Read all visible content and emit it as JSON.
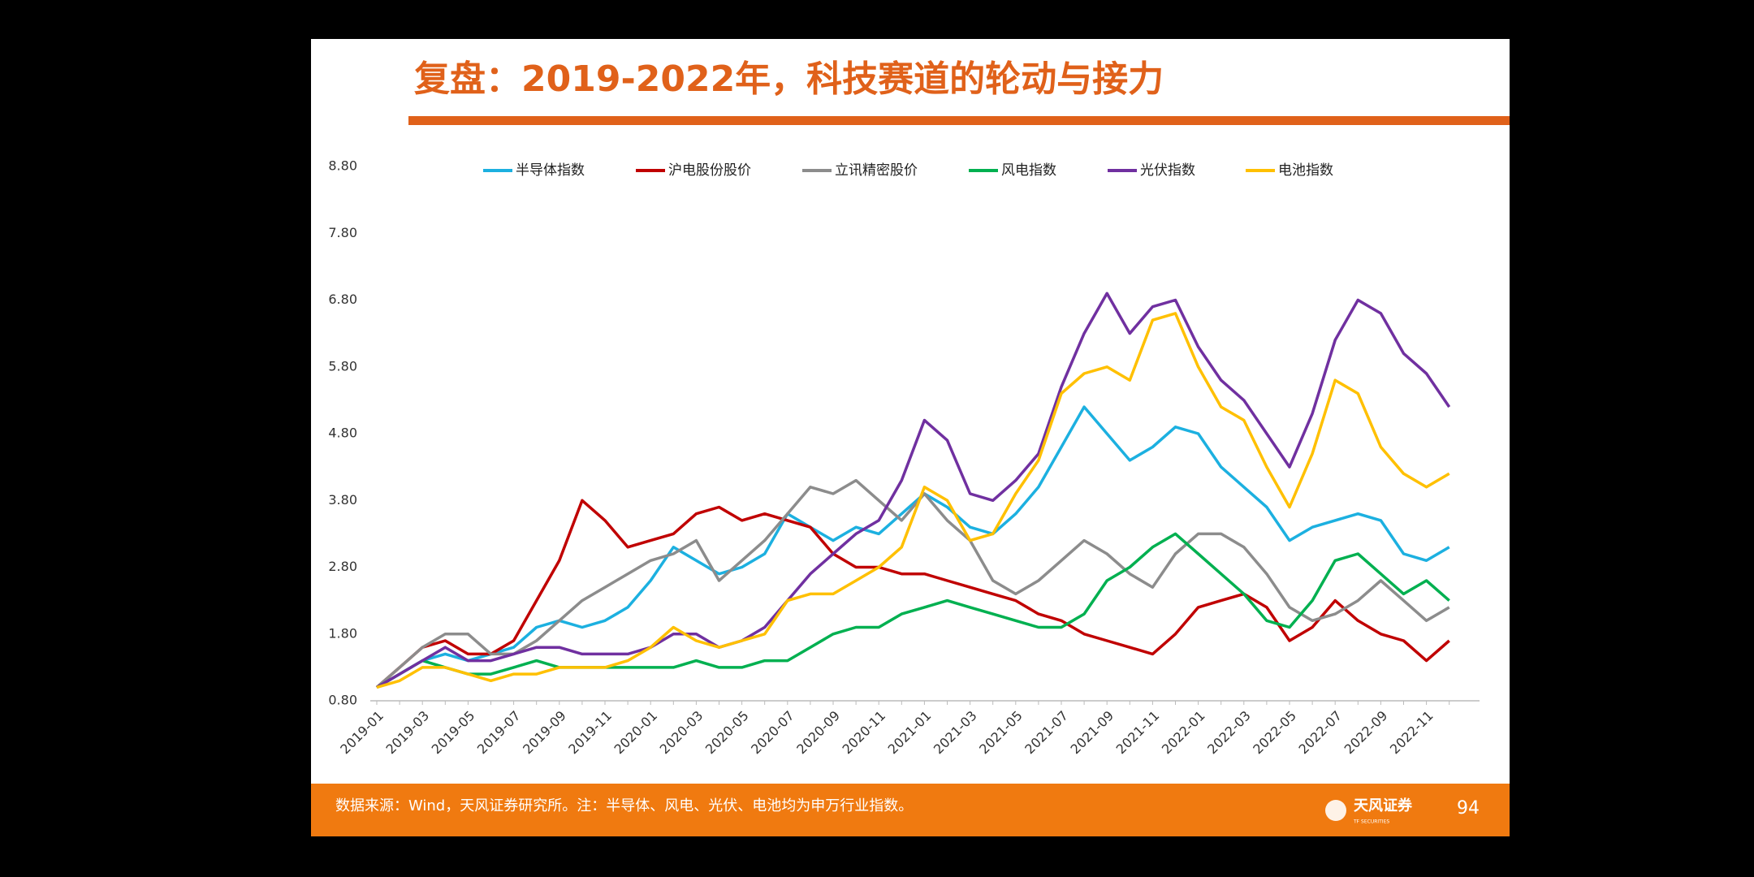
{
  "chart_data": {
    "type": "line",
    "title": "复盘：2019-2022年，科技赛道的轮动与接力",
    "categories": [
      "2019-01",
      null,
      "2019-03",
      null,
      "2019-05",
      null,
      "2019-07",
      null,
      "2019-09",
      null,
      "2019-11",
      null,
      "2020-01",
      null,
      "2020-03",
      null,
      "2020-05",
      null,
      "2020-07",
      null,
      "2020-09",
      null,
      "2020-11",
      null,
      "2021-01",
      null,
      "2021-03",
      null,
      "2021-05",
      null,
      "2021-07",
      null,
      "2021-09",
      null,
      "2021-11",
      null,
      "2022-01",
      null,
      "2022-03",
      null,
      "2022-05",
      null,
      "2022-07",
      null,
      "2022-09",
      null,
      "2022-11",
      null
    ],
    "series": [
      {
        "name": "半导体指数",
        "color": "#1cb0e0",
        "values": [
          1.0,
          1.2,
          1.4,
          1.5,
          1.4,
          1.5,
          1.6,
          1.9,
          2.0,
          1.9,
          2.0,
          2.2,
          2.6,
          3.1,
          2.9,
          2.7,
          2.8,
          3.0,
          3.6,
          3.4,
          3.2,
          3.4,
          3.3,
          3.6,
          3.9,
          3.7,
          3.4,
          3.3,
          3.6,
          4.0,
          4.6,
          5.2,
          4.8,
          4.4,
          4.6,
          4.9,
          4.8,
          4.3,
          4.0,
          3.7,
          3.2,
          3.4,
          3.5,
          3.6,
          3.5,
          3.0,
          2.9,
          3.1
        ]
      },
      {
        "name": "沪电股份股价",
        "color": "#c00000",
        "values": [
          1.0,
          1.3,
          1.6,
          1.7,
          1.5,
          1.5,
          1.7,
          2.3,
          2.9,
          3.8,
          3.5,
          3.1,
          3.2,
          3.3,
          3.6,
          3.7,
          3.5,
          3.6,
          3.5,
          3.4,
          3.0,
          2.8,
          2.8,
          2.7,
          2.7,
          2.6,
          2.5,
          2.4,
          2.3,
          2.1,
          2.0,
          1.8,
          1.7,
          1.6,
          1.5,
          1.8,
          2.2,
          2.3,
          2.4,
          2.2,
          1.7,
          1.9,
          2.3,
          2.0,
          1.8,
          1.7,
          1.4,
          1.7
        ]
      },
      {
        "name": "立讯精密股价",
        "color": "#8c8c8c",
        "values": [
          1.0,
          1.3,
          1.6,
          1.8,
          1.8,
          1.5,
          1.5,
          1.7,
          2.0,
          2.3,
          2.5,
          2.7,
          2.9,
          3.0,
          3.2,
          2.6,
          2.9,
          3.2,
          3.6,
          4.0,
          3.9,
          4.1,
          3.8,
          3.5,
          3.9,
          3.5,
          3.2,
          2.6,
          2.4,
          2.6,
          2.9,
          3.2,
          3.0,
          2.7,
          2.5,
          3.0,
          3.3,
          3.3,
          3.1,
          2.7,
          2.2,
          2.0,
          2.1,
          2.3,
          2.6,
          2.3,
          2.0,
          2.2
        ]
      },
      {
        "name": "风电指数",
        "color": "#00b050",
        "values": [
          1.0,
          1.2,
          1.4,
          1.3,
          1.2,
          1.2,
          1.3,
          1.4,
          1.3,
          1.3,
          1.3,
          1.3,
          1.3,
          1.3,
          1.4,
          1.3,
          1.3,
          1.4,
          1.4,
          1.6,
          1.8,
          1.9,
          1.9,
          2.1,
          2.2,
          2.3,
          2.2,
          2.1,
          2.0,
          1.9,
          1.9,
          2.1,
          2.6,
          2.8,
          3.1,
          3.3,
          3.0,
          2.7,
          2.4,
          2.0,
          1.9,
          2.3,
          2.9,
          3.0,
          2.7,
          2.4,
          2.6,
          2.3
        ]
      },
      {
        "name": "光伏指数",
        "color": "#7030a0",
        "values": [
          1.0,
          1.2,
          1.4,
          1.6,
          1.4,
          1.4,
          1.5,
          1.6,
          1.6,
          1.5,
          1.5,
          1.5,
          1.6,
          1.8,
          1.8,
          1.6,
          1.7,
          1.9,
          2.3,
          2.7,
          3.0,
          3.3,
          3.5,
          4.1,
          5.0,
          4.7,
          3.9,
          3.8,
          4.1,
          4.5,
          5.5,
          6.3,
          6.9,
          6.3,
          6.7,
          6.8,
          6.1,
          5.6,
          5.3,
          4.8,
          4.3,
          5.1,
          6.2,
          6.8,
          6.6,
          6.0,
          5.7,
          5.2
        ]
      },
      {
        "name": "电池指数",
        "color": "#ffc000",
        "values": [
          1.0,
          1.1,
          1.3,
          1.3,
          1.2,
          1.1,
          1.2,
          1.2,
          1.3,
          1.3,
          1.3,
          1.4,
          1.6,
          1.9,
          1.7,
          1.6,
          1.7,
          1.8,
          2.3,
          2.4,
          2.4,
          2.6,
          2.8,
          3.1,
          4.0,
          3.8,
          3.2,
          3.3,
          3.9,
          4.4,
          5.4,
          5.7,
          5.8,
          5.6,
          6.5,
          6.6,
          5.8,
          5.2,
          5.0,
          4.3,
          3.7,
          4.5,
          5.6,
          5.4,
          4.6,
          4.2,
          4.0,
          4.2
        ]
      }
    ],
    "ylim": [
      0.8,
      8.8
    ],
    "yticks": [
      {
        "value": 0.8,
        "label": "0.80"
      },
      {
        "value": 1.8,
        "label": "1.80"
      },
      {
        "value": 2.8,
        "label": "2.80"
      },
      {
        "value": 3.8,
        "label": "3.80"
      },
      {
        "value": 4.8,
        "label": "4.80"
      },
      {
        "value": 5.8,
        "label": "5.80"
      },
      {
        "value": 6.8,
        "label": "6.80"
      },
      {
        "value": 7.8,
        "label": "7.80"
      },
      {
        "value": 8.8,
        "label": "8.80"
      }
    ],
    "legend": "top",
    "grid": false
  },
  "footer": {
    "source": "数据来源：Wind，天风证券研究所。注：半导体、风电、光伏、电池均为申万行业指数。",
    "logo": "天风证券",
    "logo_sub": "TF SECURITIES",
    "page": "94"
  }
}
